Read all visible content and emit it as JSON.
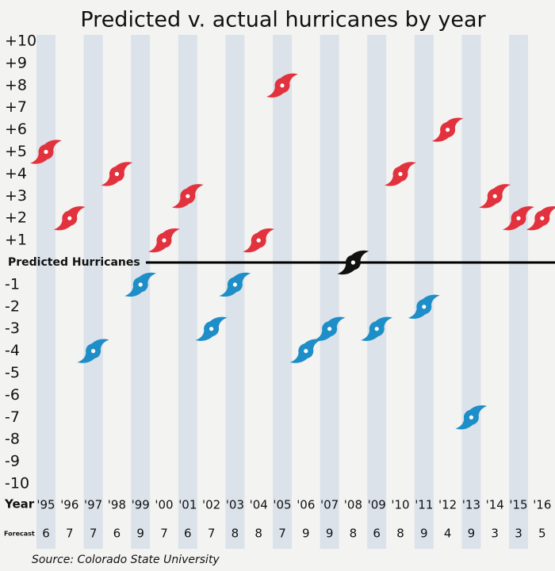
{
  "chart_data": {
    "type": "scatter",
    "title": "Predicted v. actual hurricanes by year",
    "category_label": "Year",
    "categories": [
      "'95",
      "'96",
      "'97",
      "'98",
      "'99",
      "'00",
      "'01",
      "'02",
      "'03",
      "'04",
      "'05",
      "'06",
      "'07",
      "'08",
      "'09",
      "'10",
      "'11",
      "'12",
      "'13",
      "'14",
      "'15",
      "'16"
    ],
    "values": [
      5,
      2,
      -4,
      4,
      -1,
      1,
      3,
      -3,
      -1,
      1,
      8,
      -4,
      -3,
      0,
      -3,
      4,
      -2,
      6,
      -7,
      3,
      2,
      2
    ],
    "forecast_label": "Forecast",
    "forecast": [
      6,
      7,
      7,
      6,
      9,
      7,
      6,
      7,
      8,
      8,
      7,
      9,
      9,
      8,
      6,
      8,
      9,
      4,
      9,
      3,
      3,
      5
    ],
    "ylim": [
      -10,
      10
    ],
    "yticks": [
      {
        "value": 10,
        "label": "+10"
      },
      {
        "value": 9,
        "label": "+9"
      },
      {
        "value": 8,
        "label": "+8"
      },
      {
        "value": 7,
        "label": "+7"
      },
      {
        "value": 6,
        "label": "+6"
      },
      {
        "value": 5,
        "label": "+5"
      },
      {
        "value": 4,
        "label": "+4"
      },
      {
        "value": 3,
        "label": "+3"
      },
      {
        "value": 2,
        "label": "+2"
      },
      {
        "value": 1,
        "label": "+1"
      },
      {
        "value": 0,
        "label": "Predicted Hurricanes"
      },
      -1,
      -2,
      -3,
      -4,
      -5,
      -6,
      -7,
      -8,
      -9,
      -10
    ],
    "positive_color": "#e2323d",
    "negative_color": "#1d8ec7",
    "zero_color": "#111111",
    "stripe_color": "#dbe2ea",
    "source": "Source: Colorado State University"
  }
}
